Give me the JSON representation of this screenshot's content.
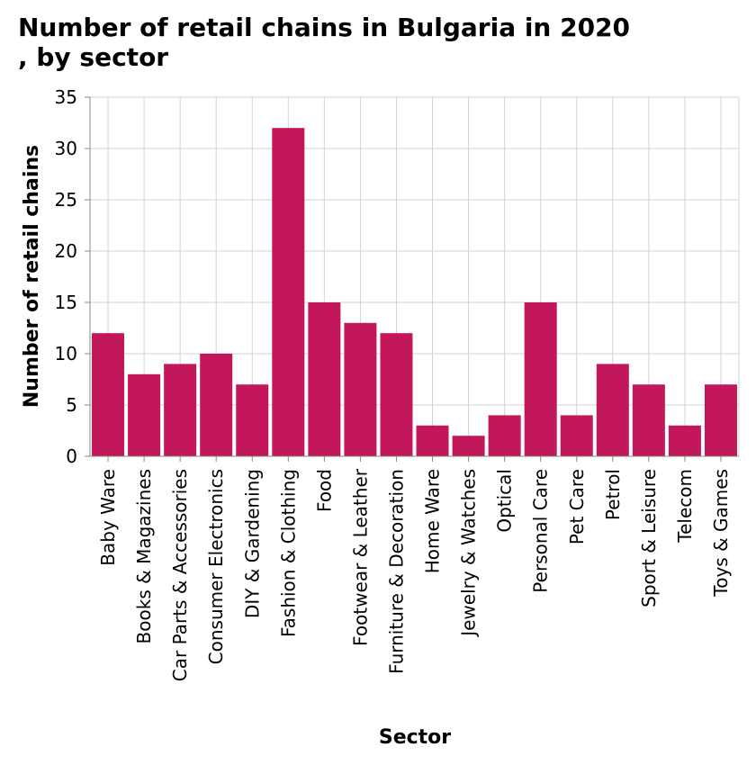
{
  "chart_data": {
    "type": "bar",
    "title": "Number of retail chains in Bulgaria in 2020\n, by sector",
    "xlabel": "Sector",
    "ylabel": "Number of retail chains",
    "ylim": [
      0,
      35
    ],
    "yticks": [
      0,
      5,
      10,
      15,
      20,
      25,
      30,
      35
    ],
    "grid": true,
    "bar_color": "#c2185b",
    "categories": [
      "Baby Ware",
      "Books & Magazines",
      "Car Parts & Accessories",
      "Consumer Electronics",
      "DIY & Gardening",
      "Fashion & Clothing",
      "Food",
      "Footwear & Leather",
      "Furniture & Decoration",
      "Home Ware",
      "Jewelry & Watches",
      "Optical",
      "Personal Care",
      "Pet Care",
      "Petrol",
      "Sport & Leisure",
      "Telecom",
      "Toys & Games"
    ],
    "values": [
      12,
      8,
      9,
      10,
      7,
      32,
      15,
      13,
      12,
      3,
      2,
      4,
      15,
      4,
      9,
      7,
      3,
      7
    ]
  }
}
